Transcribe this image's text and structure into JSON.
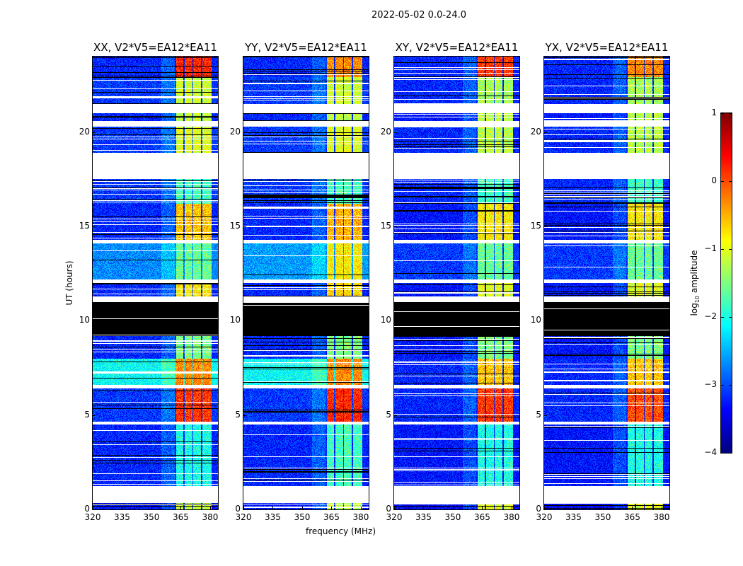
{
  "chart_data": {
    "type": "heatmap",
    "title": "2022-05-02 0.0-24.0",
    "xlabel": "frequency (MHz)",
    "ylabel": "UT (hours)",
    "xlim": [
      320,
      384
    ],
    "ylim": [
      0,
      24
    ],
    "xticks": [
      "320",
      "335",
      "350",
      "365",
      "380"
    ],
    "xtick_values": [
      320,
      335,
      350,
      365,
      380
    ],
    "yticks": [
      "0",
      "5",
      "10",
      "15",
      "20"
    ],
    "ytick_values": [
      0,
      5,
      10,
      15,
      20
    ],
    "panels": [
      {
        "title": "XX, V2*V5=EA12*EA11"
      },
      {
        "title": "YY, V2*V5=EA12*EA11"
      },
      {
        "title": "XY, V2*V5=EA12*EA11"
      },
      {
        "title": "YX, V2*V5=EA12*EA11"
      }
    ],
    "rfi_bands_mhz": [
      [
        362.5,
        366.3
      ],
      [
        366.9,
        370.9
      ],
      [
        371.5,
        375.5
      ],
      [
        376.1,
        380.6
      ]
    ],
    "time_segments": [
      {
        "from": 0.0,
        "to": 0.35,
        "kind": "data",
        "bg": [
          -3.3,
          -3.3,
          -3.4,
          -3.4
        ],
        "rfi": [
          -1.2,
          -1.2,
          -1.0,
          -1.0
        ],
        "lines": 3
      },
      {
        "from": 0.35,
        "to": 1.25,
        "kind": "blank"
      },
      {
        "from": 1.25,
        "to": 4.5,
        "kind": "data",
        "bg": [
          -3.2,
          -3.2,
          -3.3,
          -3.3
        ],
        "rfi": [
          -2.0,
          -1.8,
          -2.0,
          -2.0
        ],
        "lines": 10
      },
      {
        "from": 4.5,
        "to": 4.65,
        "kind": "blank"
      },
      {
        "from": 4.65,
        "to": 6.4,
        "kind": "data",
        "bg": [
          -3.1,
          -3.1,
          -3.2,
          -3.2
        ],
        "rfi": [
          0.1,
          0.2,
          0.1,
          0.0
        ],
        "lines": 4
      },
      {
        "from": 6.4,
        "to": 6.6,
        "kind": "blank"
      },
      {
        "from": 6.6,
        "to": 8.0,
        "kind": "data",
        "bg": [
          -2.1,
          -2.1,
          -3.2,
          -3.2
        ],
        "rfi": [
          -0.3,
          -0.3,
          -0.6,
          -0.6
        ],
        "lines": 6
      },
      {
        "from": 8.0,
        "to": 9.2,
        "kind": "data",
        "bg": [
          -3.2,
          -3.2,
          -3.3,
          -3.3
        ],
        "rfi": [
          -1.5,
          -1.5,
          -1.5,
          -1.5
        ],
        "lines": 8
      },
      {
        "from": 9.2,
        "to": 11.0,
        "kind": "black",
        "lines": 2
      },
      {
        "from": 11.0,
        "to": 11.3,
        "kind": "blank"
      },
      {
        "from": 11.3,
        "to": 12.0,
        "kind": "data",
        "bg": [
          -3.2,
          -3.2,
          -3.3,
          -3.3
        ],
        "rfi": [
          -0.8,
          -0.7,
          -1.0,
          -1.0
        ],
        "lines": 4
      },
      {
        "from": 12.0,
        "to": 12.2,
        "kind": "blank"
      },
      {
        "from": 12.2,
        "to": 14.1,
        "kind": "data",
        "bg": [
          -2.7,
          -2.6,
          -3.1,
          -3.1
        ],
        "rfi": [
          -1.6,
          -0.8,
          -1.6,
          -1.6
        ],
        "lines": 2
      },
      {
        "from": 14.1,
        "to": 14.3,
        "kind": "blank"
      },
      {
        "from": 14.3,
        "to": 16.2,
        "kind": "data",
        "bg": [
          -3.2,
          -3.2,
          -3.3,
          -3.3
        ],
        "rfi": [
          -0.6,
          -0.5,
          -0.8,
          -0.8
        ],
        "lines": 8
      },
      {
        "from": 16.2,
        "to": 17.5,
        "kind": "data",
        "bg": [
          -3.1,
          -3.1,
          -3.2,
          -3.2
        ],
        "rfi": [
          -1.8,
          -1.8,
          -1.8,
          -1.8
        ],
        "lines": 12
      },
      {
        "from": 17.5,
        "to": 18.9,
        "kind": "blank"
      },
      {
        "from": 18.9,
        "to": 20.3,
        "kind": "data",
        "bg": [
          -3.1,
          -3.1,
          -3.2,
          -3.2
        ],
        "rfi": [
          -1.0,
          -1.0,
          -1.2,
          -1.2
        ],
        "lines": 7
      },
      {
        "from": 20.3,
        "to": 20.6,
        "kind": "blank"
      },
      {
        "from": 20.6,
        "to": 21.0,
        "kind": "data",
        "bg": [
          -3.2,
          -3.2,
          -3.3,
          -3.3
        ],
        "rfi": [
          -1.2,
          -1.2,
          -1.2,
          -1.2
        ],
        "lines": 2
      },
      {
        "from": 21.0,
        "to": 21.5,
        "kind": "blank"
      },
      {
        "from": 21.5,
        "to": 22.9,
        "kind": "data",
        "bg": [
          -3.1,
          -3.1,
          -3.2,
          -3.2
        ],
        "rfi": [
          -1.1,
          -1.1,
          -1.3,
          -1.3
        ],
        "lines": 8
      },
      {
        "from": 22.9,
        "to": 24.0,
        "kind": "data",
        "bg": [
          -3.2,
          -3.2,
          -3.2,
          -3.2
        ],
        "rfi": [
          0.2,
          -0.3,
          0.1,
          -0.3
        ],
        "lines": 5
      }
    ],
    "colorbar": {
      "label_main": "log",
      "label_sub": "10",
      "label_rest": " amplitude",
      "range": [
        -4,
        1
      ],
      "ticks": [
        "−4",
        "−3",
        "−2",
        "−1",
        "0",
        "1"
      ],
      "tick_values": [
        -4,
        -3,
        -2,
        -1,
        0,
        1
      ],
      "colormap": "jet"
    }
  }
}
